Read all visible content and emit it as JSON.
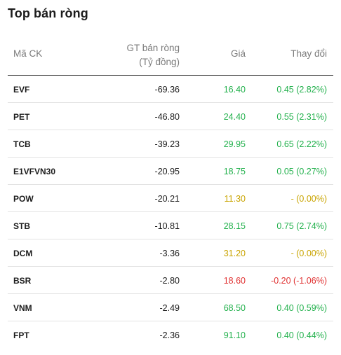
{
  "colors": {
    "up": "#23b14d",
    "ref": "#c9a400",
    "down": "#e03131"
  },
  "widget": {
    "title": "Top bán ròng",
    "headers": {
      "code": "Mã CK",
      "value_line1": "GT bán ròng",
      "value_line2": "(Tỷ đồng)",
      "price": "Giá",
      "change": "Thay đổi"
    },
    "rows": [
      {
        "code": "EVF",
        "value": "-69.36",
        "price": "16.40",
        "change": "0.45 (2.82%)",
        "trend": "up"
      },
      {
        "code": "PET",
        "value": "-46.80",
        "price": "24.40",
        "change": "0.55 (2.31%)",
        "trend": "up"
      },
      {
        "code": "TCB",
        "value": "-39.23",
        "price": "29.95",
        "change": "0.65 (2.22%)",
        "trend": "up"
      },
      {
        "code": "E1VFVN30",
        "value": "-20.95",
        "price": "18.75",
        "change": "0.05 (0.27%)",
        "trend": "up"
      },
      {
        "code": "POW",
        "value": "-20.21",
        "price": "11.30",
        "change": "- (0.00%)",
        "trend": "ref"
      },
      {
        "code": "STB",
        "value": "-10.81",
        "price": "28.15",
        "change": "0.75 (2.74%)",
        "trend": "up"
      },
      {
        "code": "DCM",
        "value": "-3.36",
        "price": "31.20",
        "change": "- (0.00%)",
        "trend": "ref"
      },
      {
        "code": "BSR",
        "value": "-2.80",
        "price": "18.60",
        "change": "-0.20 (-1.06%)",
        "trend": "down"
      },
      {
        "code": "VNM",
        "value": "-2.49",
        "price": "68.50",
        "change": "0.40 (0.59%)",
        "trend": "up"
      },
      {
        "code": "FPT",
        "value": "-2.36",
        "price": "91.10",
        "change": "0.40 (0.44%)",
        "trend": "up"
      }
    ]
  }
}
